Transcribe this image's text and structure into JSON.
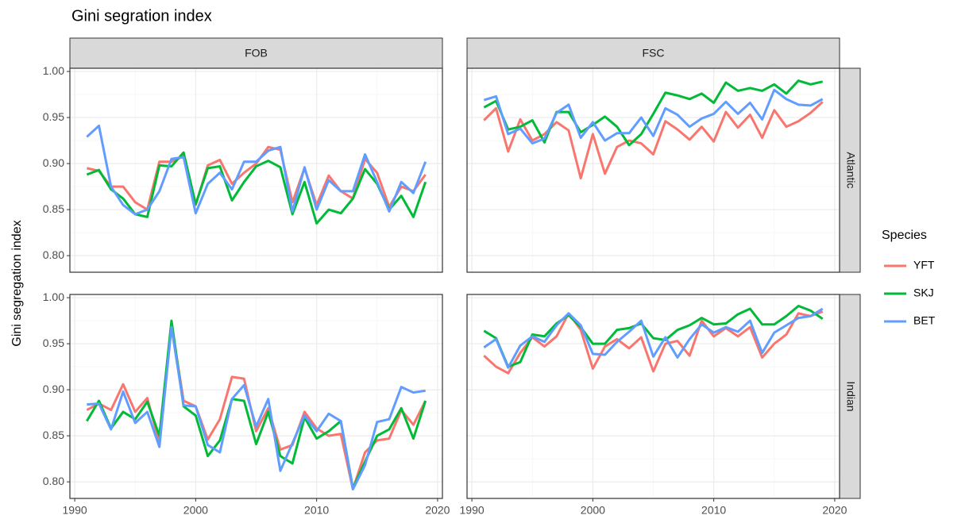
{
  "chart_data": {
    "type": "line",
    "title": "Gini segration index",
    "y_label": "Gini segregation index",
    "legend_title": "Species",
    "columns": [
      "FOB",
      "FSC"
    ],
    "rows": [
      "Atlantic",
      "Indian"
    ],
    "x": [
      1991,
      1992,
      1993,
      1994,
      1995,
      1996,
      1997,
      1998,
      1999,
      2000,
      2001,
      2002,
      2003,
      2004,
      2005,
      2006,
      2007,
      2008,
      2009,
      2010,
      2011,
      2012,
      2013,
      2014,
      2015,
      2016,
      2017,
      2018,
      2019
    ],
    "xlim": [
      1989.6,
      2020.4
    ],
    "xticks": [
      1990,
      2000,
      2010,
      2020
    ],
    "ylim": [
      0.782,
      1.0035
    ],
    "yticks": [
      {
        "value": 0.8,
        "label": "0.80"
      },
      {
        "value": 0.85,
        "label": "0.85"
      },
      {
        "value": 0.9,
        "label": "0.90"
      },
      {
        "value": 0.95,
        "label": "0.95"
      },
      {
        "value": 1.0,
        "label": "1.00"
      }
    ],
    "grid": true,
    "series": [
      {
        "name": "YFT",
        "color": "#F8766D"
      },
      {
        "name": "SKJ",
        "color": "#00BA38"
      },
      {
        "name": "BET",
        "color": "#619CFF"
      }
    ],
    "panels": [
      {
        "series": [
          {
            "values": [
              0.895,
              0.892,
              0.875,
              0.875,
              0.858,
              0.85,
              0.902,
              0.902,
              0.908,
              0.855,
              0.898,
              0.904,
              0.878,
              0.89,
              0.9,
              0.918,
              0.915,
              0.858,
              0.895,
              0.855,
              0.887,
              0.87,
              0.862,
              0.905,
              0.89,
              0.853,
              0.875,
              0.87,
              0.888
            ]
          },
          {
            "values": [
              0.888,
              0.893,
              0.872,
              0.862,
              0.845,
              0.842,
              0.898,
              0.897,
              0.912,
              0.856,
              0.895,
              0.897,
              0.86,
              0.88,
              0.897,
              0.903,
              0.896,
              0.845,
              0.88,
              0.835,
              0.85,
              0.846,
              0.862,
              0.894,
              0.878,
              0.85,
              0.865,
              0.842,
              0.88
            ]
          },
          {
            "values": [
              0.929,
              0.941,
              0.875,
              0.855,
              0.845,
              0.85,
              0.87,
              0.905,
              0.907,
              0.846,
              0.878,
              0.89,
              0.872,
              0.902,
              0.902,
              0.914,
              0.918,
              0.848,
              0.896,
              0.85,
              0.882,
              0.87,
              0.87,
              0.91,
              0.88,
              0.848,
              0.88,
              0.868,
              0.902
            ]
          }
        ]
      },
      {
        "series": [
          {
            "values": [
              0.947,
              0.96,
              0.913,
              0.948,
              0.925,
              0.932,
              0.945,
              0.936,
              0.884,
              0.932,
              0.889,
              0.918,
              0.925,
              0.922,
              0.91,
              0.946,
              0.937,
              0.926,
              0.94,
              0.924,
              0.956,
              0.939,
              0.953,
              0.928,
              0.958,
              0.94,
              0.946,
              0.955,
              0.967
            ]
          },
          {
            "values": [
              0.961,
              0.968,
              0.937,
              0.94,
              0.947,
              0.923,
              0.956,
              0.956,
              0.934,
              0.942,
              0.951,
              0.94,
              0.92,
              0.932,
              0.954,
              0.977,
              0.974,
              0.97,
              0.976,
              0.966,
              0.988,
              0.979,
              0.982,
              0.979,
              0.986,
              0.976,
              0.99,
              0.986,
              0.989
            ]
          },
          {
            "values": [
              0.969,
              0.973,
              0.932,
              0.938,
              0.922,
              0.927,
              0.955,
              0.964,
              0.928,
              0.945,
              0.925,
              0.933,
              0.933,
              0.95,
              0.93,
              0.96,
              0.953,
              0.94,
              0.949,
              0.954,
              0.967,
              0.954,
              0.966,
              0.948,
              0.98,
              0.97,
              0.964,
              0.963,
              0.97
            ]
          }
        ]
      },
      {
        "series": [
          {
            "values": [
              0.878,
              0.885,
              0.878,
              0.906,
              0.876,
              0.891,
              0.842,
              0.971,
              0.888,
              0.882,
              0.846,
              0.868,
              0.914,
              0.912,
              0.855,
              0.88,
              0.835,
              0.84,
              0.876,
              0.858,
              0.85,
              0.852,
              0.792,
              0.832,
              0.845,
              0.847,
              0.878,
              0.862,
              0.888
            ]
          },
          {
            "values": [
              0.866,
              0.888,
              0.858,
              0.876,
              0.868,
              0.887,
              0.85,
              0.975,
              0.882,
              0.872,
              0.828,
              0.845,
              0.89,
              0.888,
              0.841,
              0.876,
              0.828,
              0.82,
              0.87,
              0.847,
              0.855,
              0.866,
              0.793,
              0.822,
              0.85,
              0.857,
              0.88,
              0.847,
              0.888
            ]
          },
          {
            "values": [
              0.884,
              0.885,
              0.857,
              0.898,
              0.864,
              0.876,
              0.838,
              0.968,
              0.883,
              0.882,
              0.84,
              0.832,
              0.89,
              0.905,
              0.86,
              0.89,
              0.812,
              0.842,
              0.872,
              0.855,
              0.874,
              0.866,
              0.792,
              0.818,
              0.865,
              0.868,
              0.903,
              0.897,
              0.899
            ]
          }
        ]
      },
      {
        "series": [
          {
            "values": [
              0.937,
              0.925,
              0.918,
              0.94,
              0.957,
              0.947,
              0.958,
              0.983,
              0.965,
              0.923,
              0.947,
              0.955,
              0.945,
              0.957,
              0.92,
              0.95,
              0.953,
              0.937,
              0.975,
              0.958,
              0.967,
              0.958,
              0.968,
              0.935,
              0.95,
              0.96,
              0.983,
              0.98,
              0.985
            ]
          },
          {
            "values": [
              0.964,
              0.956,
              0.925,
              0.93,
              0.96,
              0.958,
              0.972,
              0.981,
              0.968,
              0.95,
              0.95,
              0.965,
              0.967,
              0.972,
              0.956,
              0.954,
              0.965,
              0.97,
              0.978,
              0.971,
              0.972,
              0.982,
              0.988,
              0.971,
              0.971,
              0.98,
              0.991,
              0.986,
              0.977
            ]
          },
          {
            "values": [
              0.946,
              0.955,
              0.924,
              0.948,
              0.958,
              0.952,
              0.97,
              0.983,
              0.97,
              0.939,
              0.938,
              0.952,
              0.963,
              0.975,
              0.936,
              0.957,
              0.935,
              0.955,
              0.971,
              0.962,
              0.968,
              0.963,
              0.975,
              0.94,
              0.962,
              0.97,
              0.978,
              0.98,
              0.988
            ]
          }
        ]
      }
    ]
  }
}
